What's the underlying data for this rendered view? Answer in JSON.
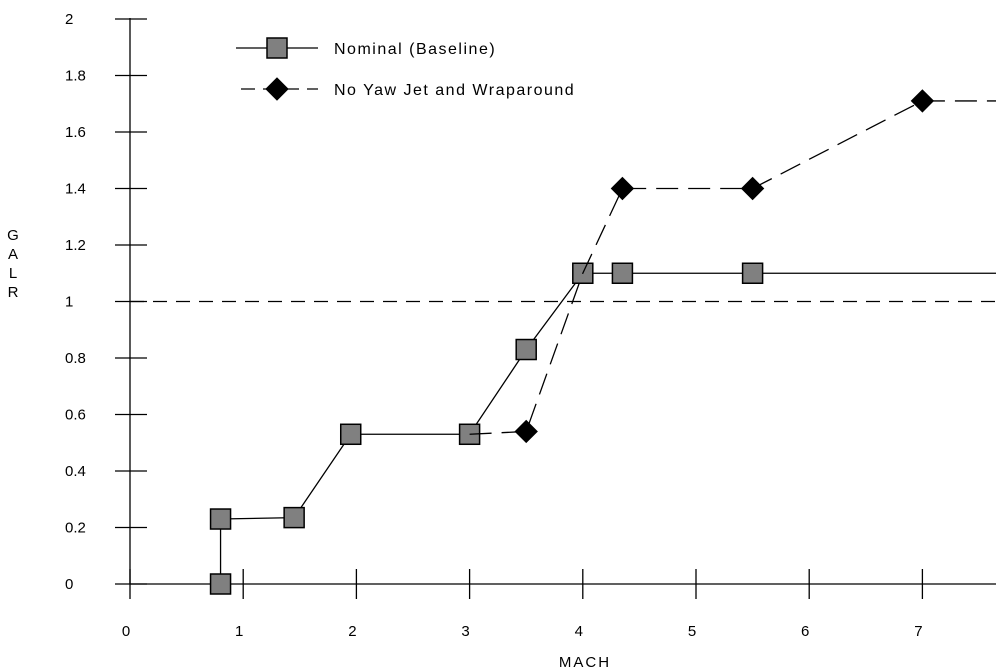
{
  "chart_data": {
    "type": "line",
    "xlabel": "MACH",
    "ylabel": "GALR",
    "xlim": [
      0,
      7.8
    ],
    "ylim": [
      0,
      2
    ],
    "xticks": [
      "0",
      "1",
      "2",
      "3",
      "4",
      "5",
      "6",
      "7"
    ],
    "yticks": [
      "0",
      "0.2",
      "0.4",
      "0.6",
      "0.8",
      "1",
      "1.2",
      "1.4",
      "1.6",
      "1.8",
      "2"
    ],
    "legend_position": "top-left",
    "reference_line": {
      "y": 1,
      "style": "dashed"
    },
    "series": [
      {
        "name": "Nominal (Baseline)",
        "marker": "square",
        "marker_color": "#808080",
        "line_style": "solid",
        "x": [
          0.8,
          0.8,
          1.45,
          1.95,
          3.0,
          3.5,
          4.0,
          4.35,
          5.5
        ],
        "y": [
          0.0,
          0.23,
          0.235,
          0.53,
          0.53,
          0.83,
          1.1,
          1.1,
          1.1
        ],
        "extends_to_edge": true
      },
      {
        "name": "No Yaw Jet and Wraparound",
        "marker": "diamond",
        "marker_color": "#000000",
        "line_style": "dashed",
        "x": [
          3.0,
          3.5,
          4.0,
          4.35,
          5.5,
          7.0
        ],
        "y": [
          0.53,
          0.54,
          1.1,
          1.4,
          1.4,
          1.71
        ],
        "extends_to_edge": true,
        "marker_start_index": 1,
        "marker_skip_indices": [
          2
        ]
      }
    ]
  }
}
